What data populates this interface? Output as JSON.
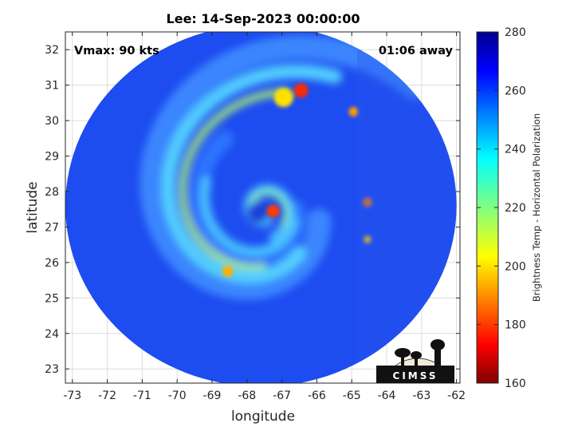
{
  "chart_data": {
    "type": "heatmap",
    "title": "Lee: 14-Sep-2023 00:00:00",
    "xlabel": "longitude",
    "ylabel": "latitude",
    "xlim": [
      -73.2,
      -61.9
    ],
    "ylim": [
      22.6,
      32.5
    ],
    "xticks": [
      -73,
      -72,
      -71,
      -70,
      -69,
      -68,
      -67,
      -66,
      -65,
      -64,
      -63,
      -62
    ],
    "yticks": [
      23,
      24,
      25,
      26,
      27,
      28,
      29,
      30,
      31,
      32
    ],
    "grid": true,
    "annotations": {
      "vmax": "Vmax: 90 kts",
      "time_away": "01:06 away"
    },
    "colorbar": {
      "label": "Brightness Temp - Horizontal Polarization",
      "range": [
        160,
        280
      ],
      "ticks": [
        160,
        180,
        200,
        220,
        240,
        260,
        280
      ],
      "colormap": "jet",
      "position": "right"
    },
    "storm_center": {
      "lon": -67.5,
      "lat": 27.5
    },
    "swath": {
      "center_lon": -67.6,
      "center_lat": 27.6,
      "radius_lon": 5.6,
      "radius_lat": 5.1
    },
    "logo_text": "CIMSS"
  },
  "colors": {
    "background_field": "#1d4cf0",
    "colormap_stops": [
      "#7f0000",
      "#ff0000",
      "#ff8000",
      "#ffff00",
      "#80ff80",
      "#00ffff",
      "#0080ff",
      "#0000ff",
      "#00008f"
    ]
  }
}
